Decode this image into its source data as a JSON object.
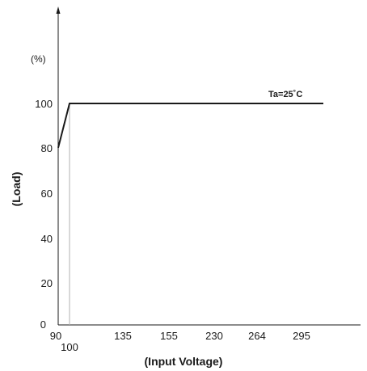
{
  "chart_data": {
    "type": "line",
    "xlabel": "(Input Voltage)",
    "ylabel": "(Load)",
    "y_unit": "(%)",
    "annotation": "Ta=25˚C",
    "x_ticks": [
      "90",
      "100",
      "135",
      "155",
      "230",
      "264",
      "295"
    ],
    "y_ticks": [
      "0",
      "20",
      "40",
      "60",
      "80",
      "100"
    ],
    "ylim": [
      0,
      100
    ],
    "grid": false,
    "series": [
      {
        "points": [
          {
            "x": "90",
            "y": 80
          },
          {
            "x": "100",
            "y": 100
          },
          {
            "x": "295",
            "y": 100
          }
        ]
      }
    ],
    "colors": {
      "line": "#1a1a1a",
      "axis": "#1a1a1a",
      "marker": "#b0b0b0"
    }
  }
}
